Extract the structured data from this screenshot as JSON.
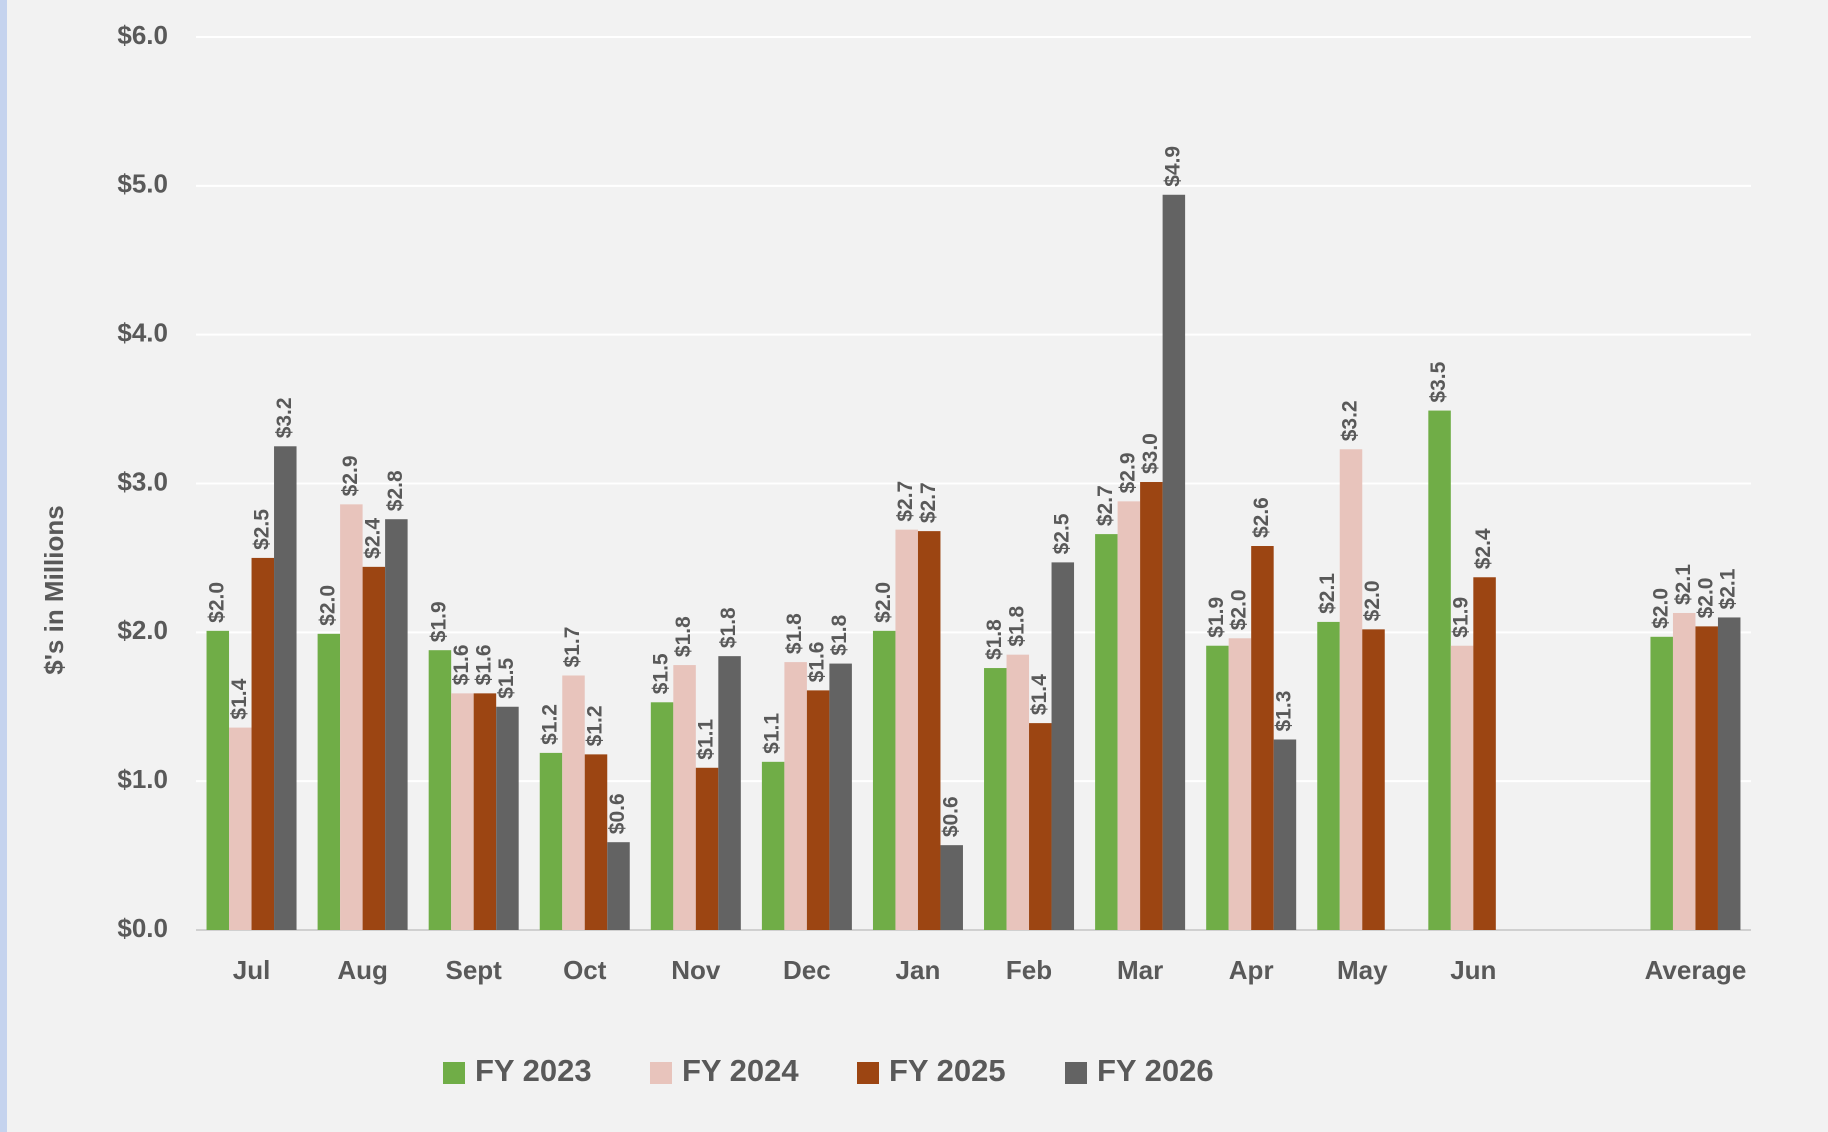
{
  "chart_data": {
    "type": "bar",
    "y_label": "$'s in Millions",
    "categories": [
      "Jul",
      "Aug",
      "Sept",
      "Oct",
      "Nov",
      "Dec",
      "Jan",
      "Feb",
      "Mar",
      "Apr",
      "May",
      "Jun",
      null,
      "Average"
    ],
    "series": [
      {
        "name": "FY 2023",
        "color": "#70ad47",
        "values": [
          2.01,
          1.99,
          1.88,
          1.19,
          1.53,
          1.13,
          2.01,
          1.76,
          2.66,
          1.91,
          2.07,
          3.49,
          null,
          1.97
        ],
        "value_labels": [
          "$2.0",
          "$2.0",
          "$1.9",
          "$1.2",
          "$1.5",
          "$1.1",
          "$2.0",
          "$1.8",
          "$2.7",
          "$1.9",
          "$2.1",
          "$3.5",
          null,
          "$2.0"
        ]
      },
      {
        "name": "FY 2024",
        "color": "#e8c4bc",
        "values": [
          1.36,
          2.86,
          1.59,
          1.71,
          1.78,
          1.8,
          2.69,
          1.85,
          2.88,
          1.96,
          3.23,
          1.91,
          null,
          2.13
        ],
        "value_labels": [
          "$1.4",
          "$2.9",
          "$1.6",
          "$1.7",
          "$1.8",
          "$1.8",
          "$2.7",
          "$1.8",
          "$2.9",
          "$2.0",
          "$3.2",
          "$1.9",
          null,
          "$2.1"
        ]
      },
      {
        "name": "FY 2025",
        "color": "#9c4512",
        "values": [
          2.5,
          2.44,
          1.59,
          1.18,
          1.09,
          1.61,
          2.68,
          1.39,
          3.01,
          2.58,
          2.02,
          2.37,
          null,
          2.04
        ],
        "value_labels": [
          "$2.5",
          "$2.4",
          "$1.6",
          "$1.2",
          "$1.1",
          "$1.6",
          "$2.7",
          "$1.4",
          "$3.0",
          "$2.6",
          "$2.0",
          "$2.4",
          null,
          "$2.0"
        ]
      },
      {
        "name": "FY 2026",
        "color": "#636363",
        "values": [
          3.25,
          2.76,
          1.5,
          0.59,
          1.84,
          1.79,
          0.57,
          2.47,
          4.94,
          1.28,
          null,
          null,
          null,
          2.1
        ],
        "value_labels": [
          "$3.2",
          "$2.8",
          "$1.5",
          "$0.6",
          "$1.8",
          "$1.8",
          "$0.6",
          "$2.5",
          "$4.9",
          "$1.3",
          null,
          null,
          null,
          "$2.1"
        ]
      }
    ],
    "ylim": [
      0,
      6
    ],
    "yticks": [
      {
        "value": 0,
        "label": "$0.0"
      },
      {
        "value": 1,
        "label": "$1.0"
      },
      {
        "value": 2,
        "label": "$2.0"
      },
      {
        "value": 3,
        "label": "$3.0"
      },
      {
        "value": 4,
        "label": "$4.0"
      },
      {
        "value": 5,
        "label": "$5.0"
      },
      {
        "value": 6,
        "label": "$6.0"
      }
    ],
    "grid": true,
    "legend": "bottom"
  }
}
